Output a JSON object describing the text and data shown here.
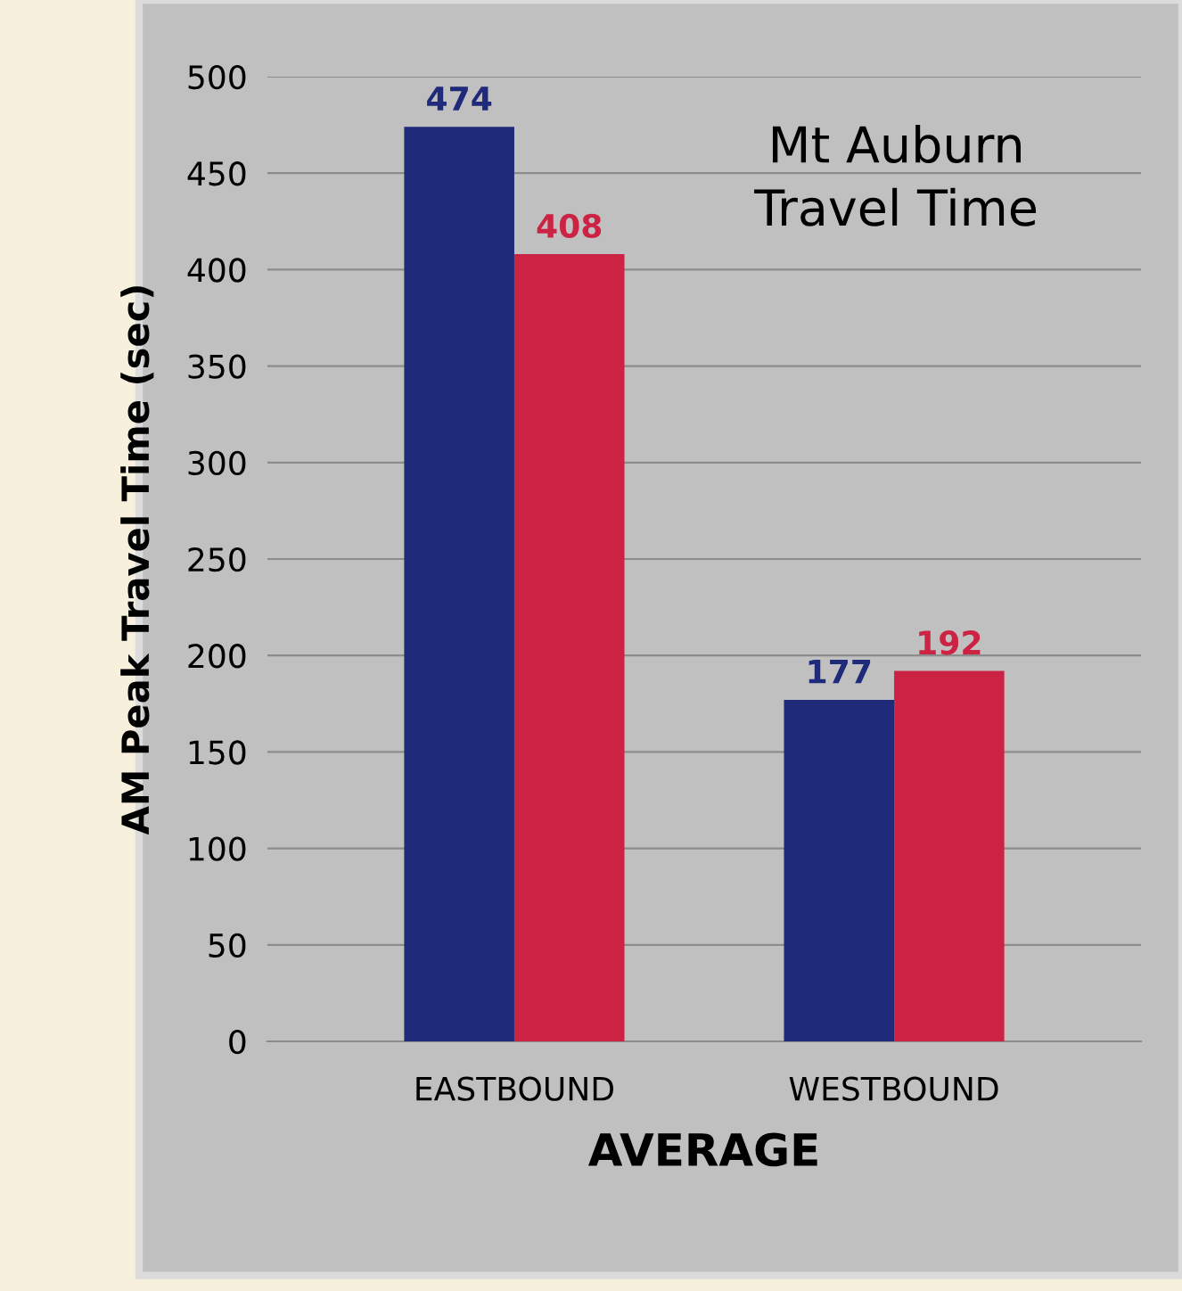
{
  "chart_data": {
    "type": "bar",
    "title": "Mt Auburn\nTravel Time",
    "xlabel": "AVERAGE",
    "ylabel": "AM Peak Travel Time (sec)",
    "categories": [
      "EASTBOUND",
      "WESTBOUND"
    ],
    "series": [
      {
        "color": "#1f2a7a",
        "values": [
          474,
          177
        ]
      },
      {
        "color": "#cc2244",
        "values": [
          408,
          192
        ]
      }
    ],
    "ylim": [
      0,
      500
    ],
    "yticks": [
      0,
      50,
      100,
      150,
      200,
      250,
      300,
      350,
      400,
      450,
      500
    ],
    "grid": "y",
    "data_labels": true,
    "legend": false
  }
}
